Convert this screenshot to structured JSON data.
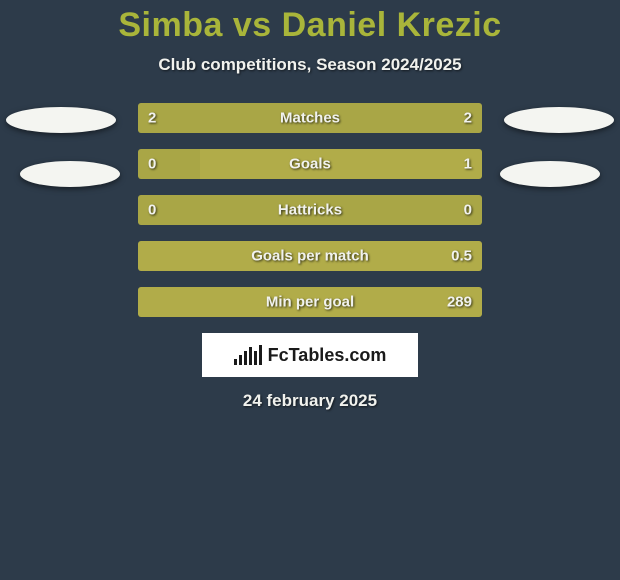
{
  "colors": {
    "background": "#2d3b4a",
    "title": "#a9b53a",
    "text_light": "#f1f2ee",
    "bar_bg": "#565e45",
    "left_fill": "#a9a646",
    "right_fill": "#b1ac49",
    "logo_bg": "#ffffff",
    "logo_text": "#1a1a1a",
    "avatar": "#f4f5f1"
  },
  "title": "Simba vs Daniel Krezic",
  "subtitle": "Club competitions, Season 2024/2025",
  "date": "24 february 2025",
  "logo_text": "FcTables.com",
  "logo_bar_heights": [
    6,
    10,
    14,
    18,
    14,
    20
  ],
  "stats": [
    {
      "label": "Matches",
      "left_val": "2",
      "right_val": "2",
      "left_pct": 100,
      "right_pct": 0
    },
    {
      "label": "Goals",
      "left_val": "0",
      "right_val": "1",
      "left_pct": 18,
      "right_pct": 82
    },
    {
      "label": "Hattricks",
      "left_val": "0",
      "right_val": "0",
      "left_pct": 100,
      "right_pct": 0
    },
    {
      "label": "Goals per match",
      "left_val": "",
      "right_val": "0.5",
      "left_pct": 0,
      "right_pct": 100
    },
    {
      "label": "Min per goal",
      "left_val": "",
      "right_val": "289",
      "left_pct": 0,
      "right_pct": 100
    }
  ]
}
